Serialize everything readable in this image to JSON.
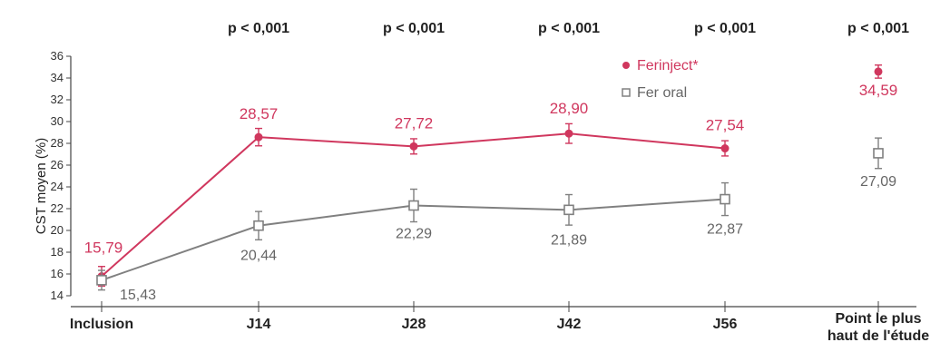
{
  "chart_data": {
    "type": "line",
    "ylabel": "CST moyen (%)",
    "xlabel": "",
    "ylim": [
      14,
      36
    ],
    "yticks": [
      14,
      16,
      18,
      20,
      22,
      24,
      26,
      28,
      30,
      32,
      34,
      36
    ],
    "categories": [
      "Inclusion",
      "J14",
      "J28",
      "J42",
      "J56",
      "Point le plus\nhaut de l'étude"
    ],
    "p_values": [
      "p < 0,001",
      "p < 0,001",
      "p < 0,001",
      "p < 0,001",
      "p < 0,001"
    ],
    "series": [
      {
        "name": "Ferinject*",
        "color": "#d0375e",
        "marker": "circle",
        "values": [
          15.79,
          28.57,
          27.72,
          28.9,
          27.54,
          34.59
        ],
        "labels": [
          "15,79",
          "28,57",
          "27,72",
          "28,90",
          "27,54",
          "34,59"
        ],
        "error": [
          0.9,
          0.8,
          0.7,
          0.9,
          0.7,
          0.6
        ]
      },
      {
        "name": "Fer oral",
        "color": "#808080",
        "marker": "square",
        "values": [
          15.43,
          20.44,
          22.29,
          21.89,
          22.87,
          27.09
        ],
        "labels": [
          "15,43",
          "20,44",
          "22,29",
          "21,89",
          "22,87",
          "27,09"
        ],
        "error": [
          0.9,
          1.3,
          1.5,
          1.4,
          1.5,
          1.4
        ]
      }
    ],
    "connected_points": 5,
    "legend_position": "top-right"
  }
}
